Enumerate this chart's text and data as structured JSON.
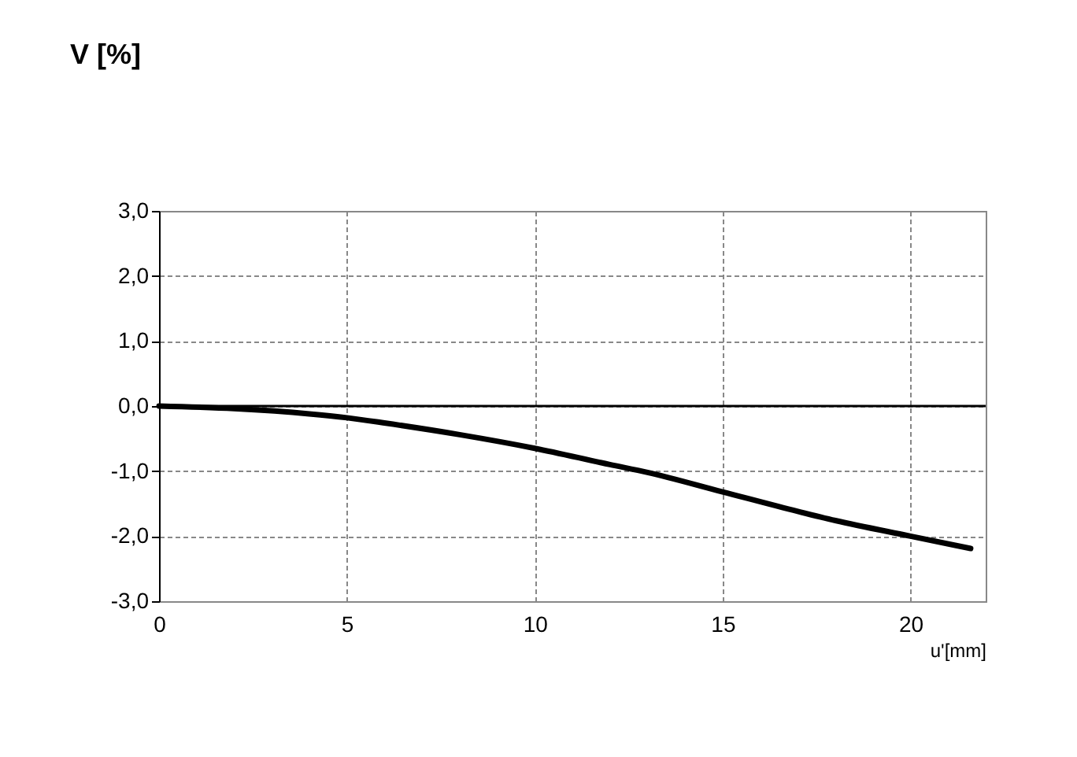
{
  "chart_data": {
    "type": "line",
    "ylabel": "V [%]",
    "xlabel": "u'[mm]",
    "x": [
      0,
      2,
      4,
      5,
      6,
      8,
      10,
      12,
      13,
      15,
      17,
      18,
      20,
      21.6
    ],
    "series": [
      {
        "color": "#000000",
        "values": [
          0,
          -0.04,
          -0.12,
          -0.18,
          -0.26,
          -0.44,
          -0.65,
          -0.9,
          -1.02,
          -1.32,
          -1.62,
          -1.76,
          -2.0,
          -2.19
        ]
      }
    ],
    "xlim": [
      0,
      22
    ],
    "xticks": [
      0,
      5,
      10,
      15,
      20
    ],
    "ylim": [
      -3,
      3
    ],
    "yticks": [
      {
        "value": -3,
        "label": "-3,0"
      },
      {
        "value": -2,
        "label": "-2,0"
      },
      {
        "value": -1,
        "label": "-1,0"
      },
      {
        "value": 0,
        "label": "0,0"
      },
      {
        "value": 1,
        "label": "1,0"
      },
      {
        "value": 2,
        "label": "2,0"
      },
      {
        "value": 3,
        "label": "3,0"
      }
    ],
    "ref_lines": [
      {
        "axis": "y",
        "value": 0,
        "color": "#000000"
      }
    ],
    "grid": true,
    "marker": "none",
    "line_style": "solid"
  }
}
